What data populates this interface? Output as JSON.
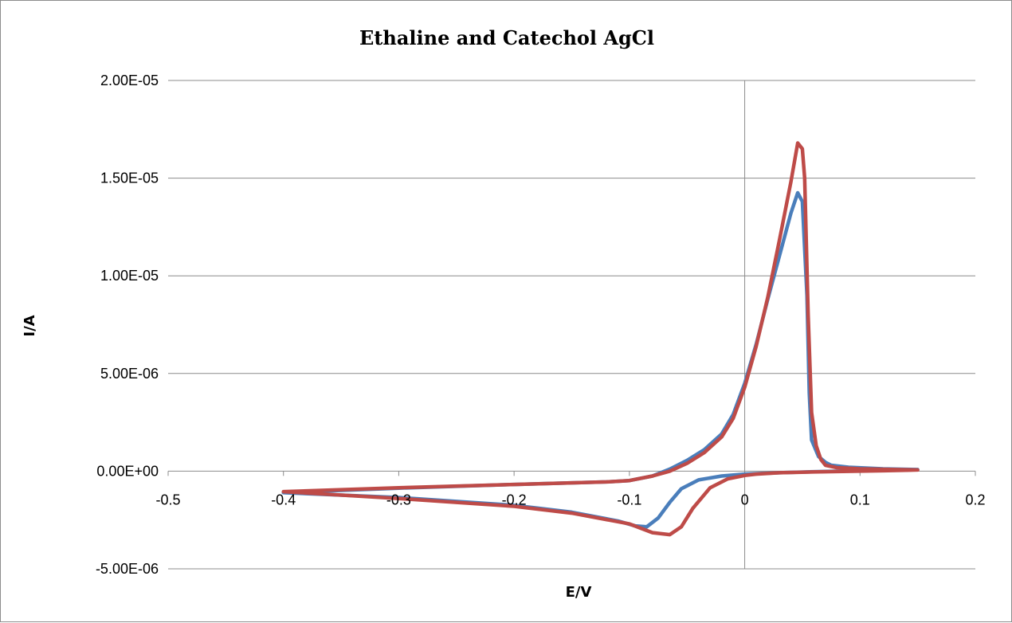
{
  "chart_data": {
    "type": "line",
    "title": "Ethaline and Catechol AgCl",
    "xlabel": "E/V",
    "ylabel": "I/A",
    "xlim": [
      -0.5,
      0.2
    ],
    "ylim": [
      -5e-06,
      2e-05
    ],
    "x_ticks": [
      -0.5,
      -0.4,
      -0.3,
      -0.2,
      -0.1,
      0,
      0.1,
      0.2
    ],
    "x_tick_labels": [
      "-0.5",
      "-0.4",
      "-0.3",
      "-0.2",
      "-0.1",
      "0",
      "0.1",
      "0.2"
    ],
    "y_ticks": [
      -5e-06,
      0,
      5e-06,
      1e-05,
      1.5e-05,
      2e-05
    ],
    "y_tick_labels": [
      "-5.00E-06",
      "0.00E+00",
      "5.00E-06",
      "1.00E-05",
      "1.50E-05",
      "2.00E-05"
    ],
    "grid": "horizontal",
    "legend": "none",
    "series": [
      {
        "color": "#4a7ebb",
        "points": [
          [
            -0.4,
            -1.1e-06
          ],
          [
            -0.3,
            -8.7e-07
          ],
          [
            -0.2,
            -6.8e-07
          ],
          [
            -0.12,
            -5.5e-07
          ],
          [
            -0.1,
            -4.8e-07
          ],
          [
            -0.08,
            -2.5e-07
          ],
          [
            -0.065,
            1e-07
          ],
          [
            -0.05,
            5.5e-07
          ],
          [
            -0.035,
            1.1e-06
          ],
          [
            -0.02,
            1.9e-06
          ],
          [
            -0.01,
            2.9e-06
          ],
          [
            0.0,
            4.5e-06
          ],
          [
            0.01,
            6.5e-06
          ],
          [
            0.02,
            8.8e-06
          ],
          [
            0.03,
            1.1e-05
          ],
          [
            0.04,
            1.32e-05
          ],
          [
            0.046,
            1.425e-05
          ],
          [
            0.05,
            1.38e-05
          ],
          [
            0.054,
            9e-06
          ],
          [
            0.056,
            4e-06
          ],
          [
            0.058,
            1.6e-06
          ],
          [
            0.064,
            7.5e-07
          ],
          [
            0.07,
            4.5e-07
          ],
          [
            0.075,
            3e-07
          ],
          [
            0.09,
            2e-07
          ],
          [
            0.12,
            1.2e-07
          ],
          [
            0.15,
            8e-08
          ],
          [
            0.12,
            4e-08
          ],
          [
            0.1,
            2e-08
          ],
          [
            0.06,
            -3e-08
          ],
          [
            0.03,
            -8e-08
          ],
          [
            0.0,
            -1.5e-07
          ],
          [
            -0.02,
            -2.5e-07
          ],
          [
            -0.04,
            -4.5e-07
          ],
          [
            -0.055,
            -9e-07
          ],
          [
            -0.065,
            -1.6e-06
          ],
          [
            -0.075,
            -2.4e-06
          ],
          [
            -0.085,
            -2.85e-06
          ],
          [
            -0.095,
            -2.8e-06
          ],
          [
            -0.11,
            -2.55e-06
          ],
          [
            -0.15,
            -2.1e-06
          ],
          [
            -0.2,
            -1.75e-06
          ],
          [
            -0.3,
            -1.35e-06
          ],
          [
            -0.4,
            -1.1e-06
          ]
        ]
      },
      {
        "color": "#be4b48",
        "points": [
          [
            -0.4,
            -1.05e-06
          ],
          [
            -0.3,
            -8.5e-07
          ],
          [
            -0.2,
            -6.8e-07
          ],
          [
            -0.12,
            -5.5e-07
          ],
          [
            -0.1,
            -4.8e-07
          ],
          [
            -0.08,
            -2.5e-07
          ],
          [
            -0.065,
            0.0
          ],
          [
            -0.05,
            4e-07
          ],
          [
            -0.035,
            9.5e-07
          ],
          [
            -0.02,
            1.75e-06
          ],
          [
            -0.01,
            2.7e-06
          ],
          [
            0.0,
            4.3e-06
          ],
          [
            0.01,
            6.4e-06
          ],
          [
            0.02,
            8.9e-06
          ],
          [
            0.03,
            1.18e-05
          ],
          [
            0.04,
            1.48e-05
          ],
          [
            0.046,
            1.68e-05
          ],
          [
            0.05,
            1.65e-05
          ],
          [
            0.052,
            1.5e-05
          ],
          [
            0.055,
            8e-06
          ],
          [
            0.058,
            3e-06
          ],
          [
            0.062,
            1.3e-06
          ],
          [
            0.066,
            6e-07
          ],
          [
            0.07,
            3e-07
          ],
          [
            0.08,
            1.8e-07
          ],
          [
            0.1,
            1.2e-07
          ],
          [
            0.15,
            6e-08
          ],
          [
            0.12,
            2e-08
          ],
          [
            0.1,
            0.0
          ],
          [
            0.06,
            -4e-08
          ],
          [
            0.03,
            -8e-08
          ],
          [
            0.01,
            -1.5e-07
          ],
          [
            0.0,
            -2.2e-07
          ],
          [
            -0.015,
            -4e-07
          ],
          [
            -0.03,
            -8.5e-07
          ],
          [
            -0.045,
            -1.9e-06
          ],
          [
            -0.055,
            -2.85e-06
          ],
          [
            -0.065,
            -3.25e-06
          ],
          [
            -0.08,
            -3.15e-06
          ],
          [
            -0.1,
            -2.7e-06
          ],
          [
            -0.15,
            -2.15e-06
          ],
          [
            -0.2,
            -1.8e-06
          ],
          [
            -0.3,
            -1.4e-06
          ],
          [
            -0.4,
            -1.05e-06
          ]
        ]
      }
    ]
  }
}
